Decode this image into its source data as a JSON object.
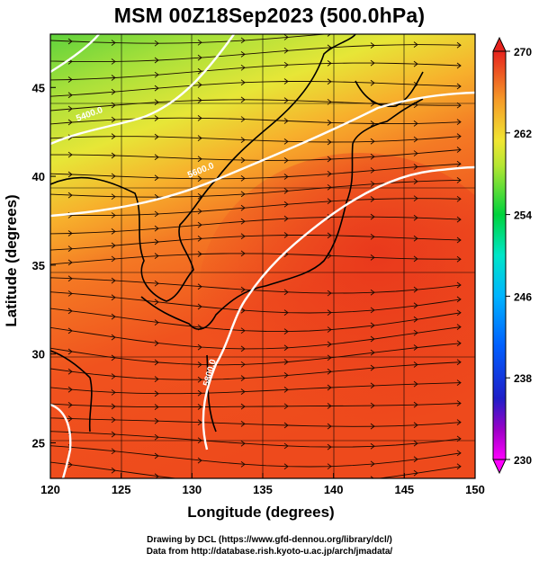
{
  "title": "MSM 00Z18Sep2023 (500.0hPa)",
  "axes": {
    "xlabel": "Longitude (degrees)",
    "ylabel": "Latitude  (degrees)",
    "x_ticks": [
      "120",
      "125",
      "130",
      "135",
      "140",
      "145",
      "150"
    ],
    "y_ticks": [
      "25",
      "30",
      "35",
      "40",
      "45"
    ],
    "x_range": [
      120,
      150
    ],
    "y_range": [
      23,
      48
    ]
  },
  "colorbar": {
    "ticks": [
      "270",
      "262",
      "254",
      "246",
      "238",
      "230"
    ],
    "range": [
      230,
      270
    ],
    "colors": [
      "#ff00ff",
      "#1e1ec8",
      "#0090ff",
      "#00e6c8",
      "#00d23c",
      "#b4e632",
      "#f0e632",
      "#f59b28",
      "#f0461e",
      "#e6231e"
    ]
  },
  "contours": {
    "labels": [
      "5400.0",
      "5600.0",
      "5800.0",
      "5900.0"
    ]
  },
  "credits": {
    "line1": "Drawing by DCL (https://www.gfd-dennou.org/library/dcl/)",
    "line2": "Data from http://database.rish.kyoto-u.ac.jp/arch/jmadata/"
  }
}
